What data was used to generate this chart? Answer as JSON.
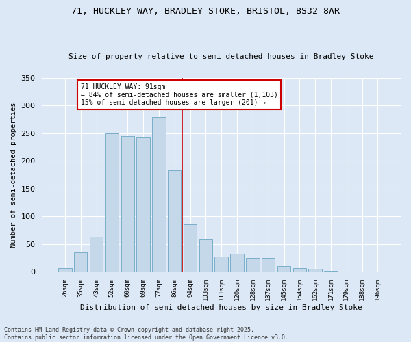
{
  "title1": "71, HUCKLEY WAY, BRADLEY STOKE, BRISTOL, BS32 8AR",
  "title2": "Size of property relative to semi-detached houses in Bradley Stoke",
  "xlabel": "Distribution of semi-detached houses by size in Bradley Stoke",
  "ylabel": "Number of semi-detached properties",
  "categories": [
    "26sqm",
    "35sqm",
    "43sqm",
    "52sqm",
    "60sqm",
    "69sqm",
    "77sqm",
    "86sqm",
    "94sqm",
    "103sqm",
    "111sqm",
    "120sqm",
    "128sqm",
    "137sqm",
    "145sqm",
    "154sqm",
    "162sqm",
    "171sqm",
    "179sqm",
    "188sqm",
    "196sqm"
  ],
  "values": [
    7,
    35,
    63,
    250,
    245,
    243,
    280,
    183,
    86,
    58,
    28,
    33,
    25,
    25,
    11,
    7,
    5,
    2,
    1,
    1,
    1
  ],
  "bar_color": "#c5d8ea",
  "bar_edge_color": "#7aaec8",
  "vline_color": "#cc0000",
  "annotation_title": "71 HUCKLEY WAY: 91sqm",
  "annotation_line1": "← 84% of semi-detached houses are smaller (1,103)",
  "annotation_line2": "15% of semi-detached houses are larger (201) →",
  "annotation_box_color": "#cc0000",
  "ylim": [
    0,
    350
  ],
  "yticks": [
    0,
    50,
    100,
    150,
    200,
    250,
    300,
    350
  ],
  "footnote1": "Contains HM Land Registry data © Crown copyright and database right 2025.",
  "footnote2": "Contains public sector information licensed under the Open Government Licence v3.0.",
  "bg_color": "#dce8f5",
  "plot_bg_color": "#dce8f5"
}
